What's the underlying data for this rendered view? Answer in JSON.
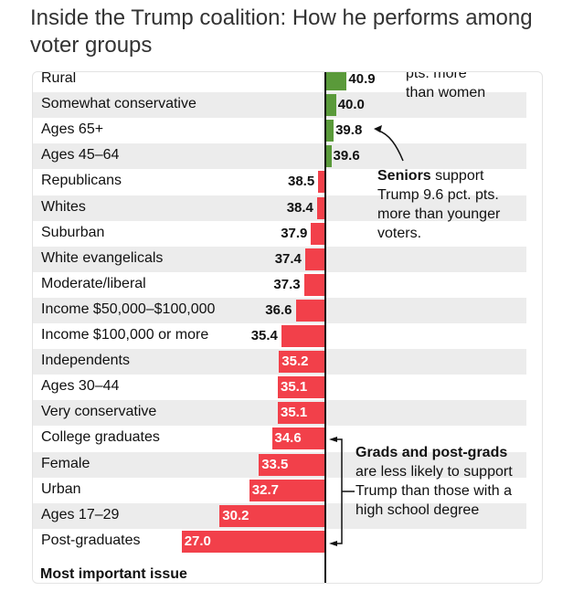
{
  "title": "Inside the Trump coalition: How he performs among voter groups",
  "chart_data": {
    "type": "bar",
    "title": "Inside the Trump coalition: How he performs among voter groups",
    "categories": [
      "Rural",
      "Somewhat conservative",
      "Ages 65+",
      "Ages 45–64",
      "Republicans",
      "Whites",
      "Suburban",
      "White evangelicals",
      "Moderate/liberal",
      "Income $50,000–$100,000",
      "Income $100,000 or more",
      "Independents",
      "Ages 30–44",
      "Very conservative",
      "College graduates",
      "Female",
      "Urban",
      "Ages 17–29",
      "Post-graduates"
    ],
    "values": [
      40.9,
      40.0,
      39.8,
      39.6,
      38.5,
      38.4,
      37.9,
      37.4,
      37.3,
      36.6,
      35.4,
      35.2,
      35.1,
      35.1,
      34.6,
      33.5,
      32.7,
      30.2,
      27.0
    ],
    "labels": [
      "40.9",
      "40.0",
      "39.8",
      "39.6",
      "38.5",
      "38.4",
      "37.9",
      "37.4",
      "37.3",
      "36.6",
      "35.4",
      "35.2",
      "35.1",
      "35.1",
      "34.6",
      "33.5",
      "32.7",
      "30.2",
      "27.0"
    ],
    "colors": {
      "above": "#5a9a3a",
      "below": "#f2404a"
    },
    "annotations": {
      "top_partial": [
        "pts. more",
        "than women"
      ],
      "seniors_bold": "Seniors",
      "seniors_rest": " support Trump 9.6 pct. pts. more than younger voters.",
      "grads_bold": "Grads and post-grads",
      "grads_rest": " are less likely to support Trump than those with a high school degree"
    },
    "footer": "Most important issue"
  }
}
